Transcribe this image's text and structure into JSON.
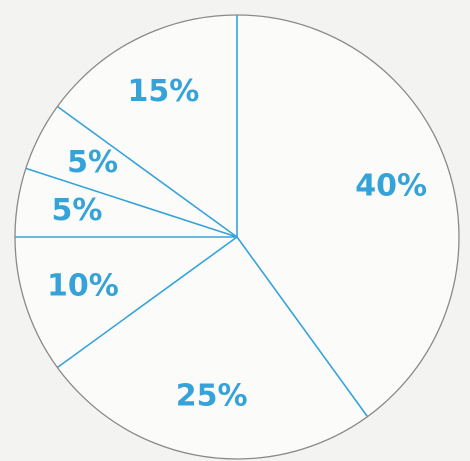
{
  "chart_data": {
    "type": "pie",
    "values": [
      40,
      25,
      10,
      5,
      5,
      15
    ],
    "value_labels": [
      "40%",
      "25%",
      "10%",
      "5%",
      "5%",
      "15%"
    ],
    "color": "#35a3d9"
  }
}
